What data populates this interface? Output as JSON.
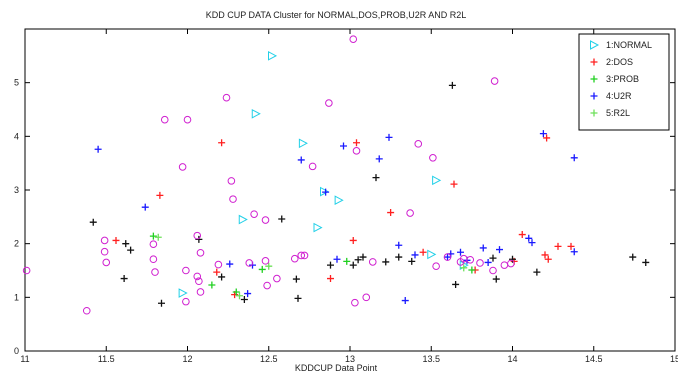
{
  "chart_data": {
    "type": "scatter",
    "title": "KDD CUP DATA Cluster for NORMAL,DOS,PROB,U2R AND R2L",
    "xlabel": "KDDCUP Data Point",
    "ylabel": "",
    "xlim": [
      11,
      15
    ],
    "ylim": [
      0,
      6
    ],
    "x_ticks": [
      "11",
      "11.5",
      "12",
      "12.5",
      "13",
      "13.5",
      "14",
      "14.5",
      "15"
    ],
    "y_ticks": [
      "0",
      "1",
      "2",
      "3",
      "4",
      "5"
    ],
    "grid": false,
    "legend_position": "top-right",
    "series": [
      {
        "name": "1:NORMAL",
        "marker": "triangle-right",
        "color": "#22d0e8",
        "points": [
          [
            12.52,
            5.5
          ],
          [
            12.42,
            4.42
          ],
          [
            12.71,
            3.87
          ],
          [
            12.84,
            2.97
          ],
          [
            12.93,
            2.81
          ],
          [
            13.53,
            3.18
          ],
          [
            12.8,
            2.3
          ],
          [
            12.34,
            2.45
          ],
          [
            11.97,
            1.08
          ],
          [
            13.7,
            1.6
          ],
          [
            13.5,
            1.8
          ]
        ]
      },
      {
        "name": "2:DOS",
        "color": "#ff2020",
        "marker": "plus",
        "points": [
          [
            12.21,
            3.88
          ],
          [
            11.83,
            2.9
          ],
          [
            11.56,
            2.06
          ],
          [
            13.04,
            3.88
          ],
          [
            13.25,
            2.58
          ],
          [
            13.64,
            3.11
          ],
          [
            14.21,
            3.97
          ],
          [
            14.06,
            2.17
          ],
          [
            14.28,
            1.95
          ],
          [
            14.36,
            1.95
          ],
          [
            12.88,
            1.35
          ],
          [
            13.02,
            2.06
          ],
          [
            12.18,
            1.47
          ],
          [
            14.01,
            1.67
          ],
          [
            14.2,
            1.79
          ],
          [
            14.22,
            1.71
          ],
          [
            13.77,
            1.51
          ],
          [
            12.29,
            1.05
          ],
          [
            13.45,
            1.84
          ]
        ]
      },
      {
        "name": "3:PROB",
        "color": "#20d020",
        "marker": "plus",
        "points": [
          [
            11.79,
            2.14
          ],
          [
            12.46,
            1.52
          ],
          [
            12.15,
            1.23
          ],
          [
            12.3,
            1.1
          ],
          [
            12.98,
            1.67
          ],
          [
            13.75,
            1.51
          ]
        ]
      },
      {
        "name": "4:U2R",
        "color": "#1a1aff",
        "marker": "plus",
        "points": [
          [
            11.45,
            3.76
          ],
          [
            11.74,
            2.68
          ],
          [
            12.7,
            3.56
          ],
          [
            12.96,
            3.82
          ],
          [
            13.24,
            3.98
          ],
          [
            13.18,
            3.58
          ],
          [
            14.19,
            4.05
          ],
          [
            14.38,
            3.6
          ],
          [
            14.1,
            2.1
          ],
          [
            14.12,
            2.02
          ],
          [
            13.3,
            1.97
          ],
          [
            13.4,
            1.79
          ],
          [
            13.6,
            1.75
          ],
          [
            13.68,
            1.84
          ],
          [
            13.82,
            1.92
          ],
          [
            13.85,
            1.65
          ],
          [
            13.92,
            1.89
          ],
          [
            12.37,
            1.07
          ],
          [
            12.4,
            1.6
          ],
          [
            12.26,
            1.62
          ],
          [
            13.34,
            0.94
          ],
          [
            14.38,
            1.85
          ],
          [
            12.85,
            2.96
          ],
          [
            13.72,
            1.69
          ],
          [
            13.62,
            1.81
          ],
          [
            12.92,
            1.71
          ]
        ]
      },
      {
        "name": "5:R2L",
        "color": "#6ee05a",
        "marker": "plus",
        "points": [
          [
            11.82,
            2.12
          ],
          [
            12.32,
            1.03
          ],
          [
            12.5,
            1.58
          ],
          [
            13.7,
            1.55
          ]
        ]
      },
      {
        "name": "",
        "color": "#111111",
        "marker": "plus",
        "points": [
          [
            13.63,
            4.95
          ],
          [
            13.16,
            3.23
          ],
          [
            11.42,
            2.4
          ],
          [
            11.62,
            2.0
          ],
          [
            11.65,
            1.88
          ],
          [
            11.61,
            1.35
          ],
          [
            11.84,
            0.89
          ],
          [
            12.07,
            2.08
          ],
          [
            12.58,
            2.46
          ],
          [
            12.67,
            1.34
          ],
          [
            12.68,
            0.98
          ],
          [
            12.88,
            1.6
          ],
          [
            13.05,
            1.7
          ],
          [
            13.08,
            1.75
          ],
          [
            13.22,
            1.66
          ],
          [
            13.3,
            1.75
          ],
          [
            13.38,
            1.67
          ],
          [
            13.65,
            1.24
          ],
          [
            13.9,
            1.34
          ],
          [
            14.15,
            1.47
          ],
          [
            14.74,
            1.75
          ],
          [
            14.82,
            1.65
          ],
          [
            12.35,
            0.96
          ],
          [
            12.21,
            1.38
          ],
          [
            13.02,
            1.6
          ],
          [
            13.88,
            1.73
          ],
          [
            14.0,
            1.71
          ]
        ]
      },
      {
        "name": "",
        "color": "#d020d0",
        "marker": "circle",
        "points": [
          [
            11.01,
            1.5
          ],
          [
            11.38,
            0.75
          ],
          [
            11.49,
            2.06
          ],
          [
            11.49,
            1.85
          ],
          [
            11.5,
            1.65
          ],
          [
            11.79,
            1.99
          ],
          [
            11.79,
            1.71
          ],
          [
            11.8,
            1.47
          ],
          [
            11.86,
            4.31
          ],
          [
            12.0,
            4.31
          ],
          [
            11.97,
            3.43
          ],
          [
            11.99,
            1.5
          ],
          [
            11.99,
            0.92
          ],
          [
            12.06,
            2.15
          ],
          [
            12.06,
            1.39
          ],
          [
            12.07,
            1.3
          ],
          [
            12.08,
            1.1
          ],
          [
            12.08,
            1.83
          ],
          [
            12.19,
            1.61
          ],
          [
            12.24,
            4.72
          ],
          [
            12.27,
            3.17
          ],
          [
            12.28,
            2.83
          ],
          [
            12.38,
            1.64
          ],
          [
            12.41,
            2.55
          ],
          [
            12.48,
            2.44
          ],
          [
            12.48,
            1.68
          ],
          [
            12.49,
            1.22
          ],
          [
            12.55,
            1.35
          ],
          [
            12.66,
            1.72
          ],
          [
            12.7,
            1.78
          ],
          [
            12.72,
            1.78
          ],
          [
            12.77,
            3.44
          ],
          [
            12.87,
            4.62
          ],
          [
            13.02,
            5.81
          ],
          [
            13.04,
            3.73
          ],
          [
            13.1,
            1.0
          ],
          [
            13.14,
            1.66
          ],
          [
            13.37,
            2.57
          ],
          [
            13.42,
            3.86
          ],
          [
            13.51,
            3.6
          ],
          [
            13.53,
            1.58
          ],
          [
            13.7,
            1.72
          ],
          [
            13.74,
            1.7
          ],
          [
            13.8,
            1.64
          ],
          [
            13.89,
            5.03
          ],
          [
            13.99,
            1.63
          ],
          [
            13.68,
            1.66
          ],
          [
            13.03,
            0.9
          ],
          [
            13.6,
            1.75
          ],
          [
            13.88,
            1.5
          ],
          [
            13.95,
            1.6
          ]
        ]
      }
    ]
  }
}
